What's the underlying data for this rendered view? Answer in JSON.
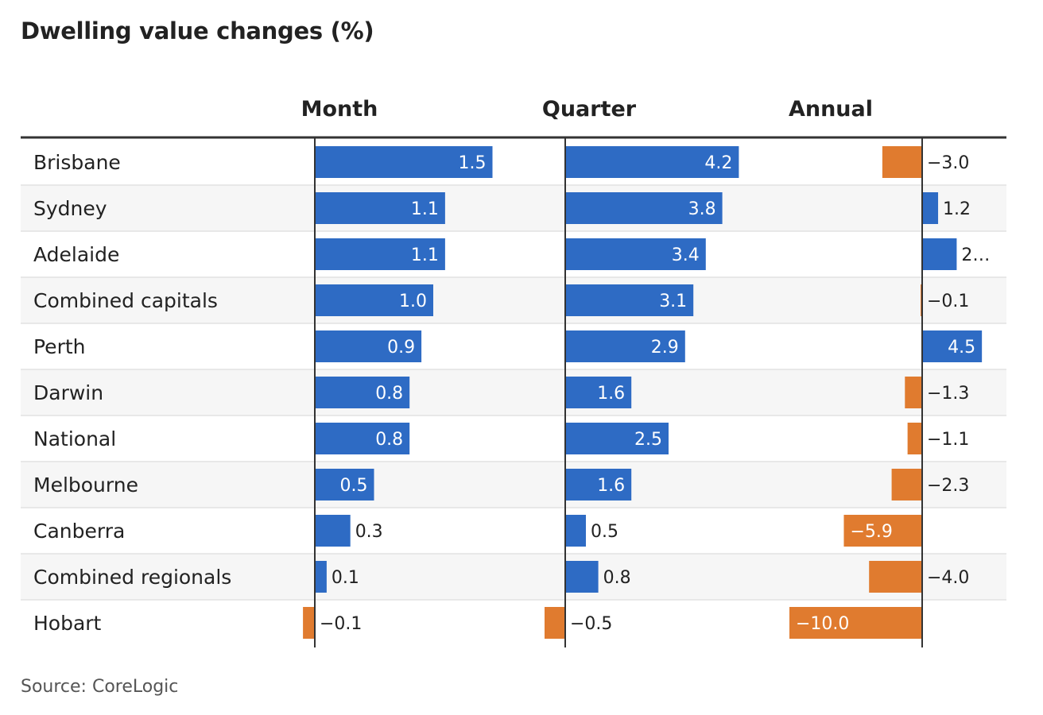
{
  "title": "Dwelling value changes (%)",
  "source": "Source: CoreLogic",
  "colors": {
    "positive": "#2e6bc4",
    "negative": "#e07b2f",
    "row_alt": "#f6f6f6",
    "grid": "#e2e2e2",
    "axis": "#333333",
    "header_rule": "#333333"
  },
  "chart_data": {
    "type": "bar",
    "layout": "small-multiple horizontal bars",
    "categories": [
      "Brisbane",
      "Sydney",
      "Adelaide",
      "Combined capitals",
      "Perth",
      "Darwin",
      "National",
      "Melbourne",
      "Canberra",
      "Combined regionals",
      "Hobart"
    ],
    "series": [
      {
        "name": "Month",
        "values": [
          1.5,
          1.1,
          1.1,
          1.0,
          0.9,
          0.8,
          0.8,
          0.5,
          0.3,
          0.1,
          -0.1
        ]
      },
      {
        "name": "Quarter",
        "values": [
          4.2,
          3.8,
          3.4,
          3.1,
          2.9,
          1.6,
          2.5,
          1.6,
          0.5,
          0.8,
          -0.5
        ]
      },
      {
        "name": "Annual",
        "values": [
          -3.0,
          1.2,
          2.6,
          -0.1,
          4.5,
          -1.3,
          -1.1,
          -2.3,
          -5.9,
          -4.0,
          -10.0
        ]
      }
    ],
    "value_labels": [
      [
        "1.5",
        "1.1",
        "1.1",
        "1.0",
        "0.9",
        "0.8",
        "0.8",
        "0.5",
        "0.3",
        "0.1",
        "−0.1"
      ],
      [
        "4.2",
        "3.8",
        "3.4",
        "3.1",
        "2.9",
        "1.6",
        "2.5",
        "1.6",
        "0.5",
        "0.8",
        "−0.5"
      ],
      [
        "−3.0",
        "1.2",
        "2…",
        "−0.1",
        "4.5",
        "−1.3",
        "−1.1",
        "−2.3",
        "−5.9",
        "−4.0",
        "−10.0"
      ]
    ],
    "legend": "none",
    "grid": false
  }
}
